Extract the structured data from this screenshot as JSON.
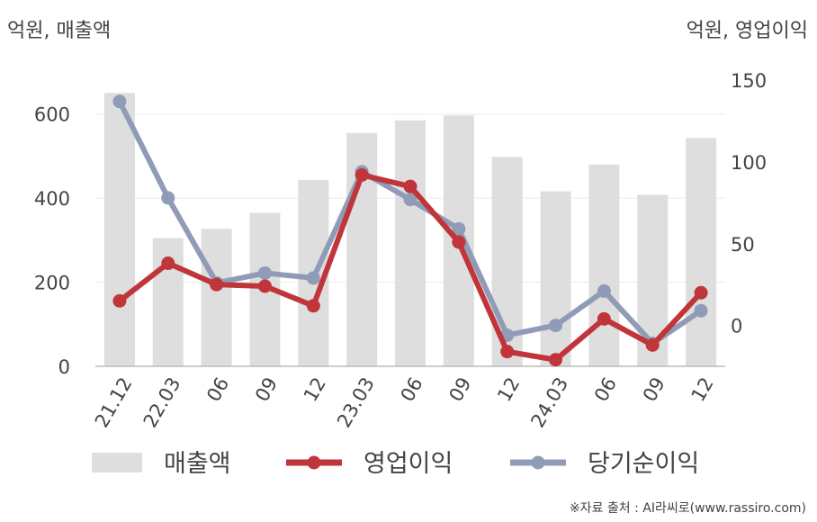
{
  "chart_data": {
    "type": "bar+line",
    "left_axis_label": "억원, 매출액",
    "right_axis_label": "억원, 영업이익",
    "categories": [
      "21.12",
      "22.03",
      "06",
      "09",
      "12",
      "23.03",
      "06",
      "09",
      "12",
      "24.03",
      "06",
      "09",
      "12"
    ],
    "left_ylim": [
      0,
      700
    ],
    "left_ticks": [
      0,
      200,
      400,
      600
    ],
    "right_ylim": [
      -25,
      155
    ],
    "right_ticks": [
      0,
      50,
      100,
      150
    ],
    "series": [
      {
        "name": "매출액",
        "kind": "bar",
        "axis": "left",
        "color": "#dedede",
        "values": [
          650,
          305,
          327,
          365,
          443,
          555,
          585,
          597,
          498,
          416,
          480,
          408,
          543
        ]
      },
      {
        "name": "영업이익",
        "kind": "line",
        "axis": "right",
        "color": "#c0353a",
        "values": [
          15,
          38,
          25,
          24,
          12,
          92,
          85,
          51,
          -16,
          -21,
          4,
          -12,
          20
        ]
      },
      {
        "name": "당기순이익",
        "kind": "line",
        "axis": "right",
        "color": "#909cb7",
        "values": [
          137,
          78,
          26,
          32,
          29,
          94,
          77,
          59,
          -6,
          0,
          21,
          -11,
          9
        ]
      }
    ],
    "grid": "horizontal",
    "legend_position": "bottom"
  },
  "source_text": "※자료 출처 : AI라씨로(www.rassiro.com)"
}
